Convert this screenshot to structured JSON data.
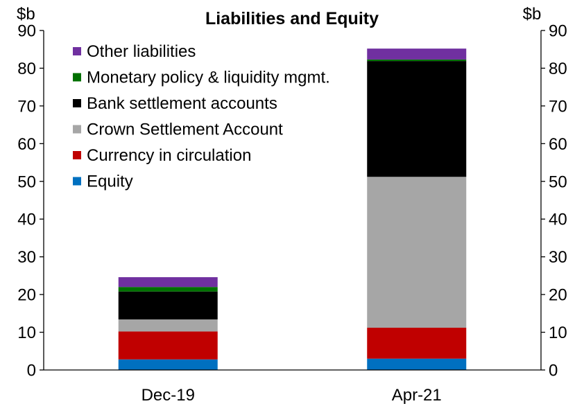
{
  "chart_data": {
    "type": "bar",
    "stacked": true,
    "title": "Liabilities and Equity",
    "left_unit": "$b",
    "right_unit": "$b",
    "categories": [
      "Dec-19",
      "Apr-21"
    ],
    "ylim": [
      0,
      90
    ],
    "y_ticks": [
      "0",
      "10",
      "20",
      "30",
      "40",
      "50",
      "60",
      "70",
      "80",
      "90"
    ],
    "grid": false,
    "legend_position": "top-left",
    "series": [
      {
        "name": "Equity",
        "color": "#0070c0",
        "values": [
          2.8,
          3.0
        ]
      },
      {
        "name": "Currency in circulation",
        "color": "#c00000",
        "values": [
          7.4,
          8.2
        ]
      },
      {
        "name": "Crown Settlement Account",
        "color": "#a6a6a6",
        "values": [
          3.2,
          40.0
        ]
      },
      {
        "name": "Bank settlement accounts",
        "color": "#000000",
        "values": [
          7.4,
          30.7
        ]
      },
      {
        "name": "Monetary policy & liquidity mgmt.",
        "color": "#007000",
        "values": [
          1.2,
          0.4
        ]
      },
      {
        "name": "Other liabilities",
        "color": "#7030a0",
        "values": [
          2.6,
          2.9
        ]
      }
    ]
  }
}
